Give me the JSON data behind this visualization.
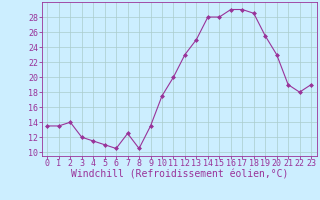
{
  "x": [
    0,
    1,
    2,
    3,
    4,
    5,
    6,
    7,
    8,
    9,
    10,
    11,
    12,
    13,
    14,
    15,
    16,
    17,
    18,
    19,
    20,
    21,
    22,
    23
  ],
  "y": [
    13.5,
    13.5,
    14.0,
    12.0,
    11.5,
    11.0,
    10.5,
    12.5,
    10.5,
    13.5,
    17.5,
    20.0,
    23.0,
    25.0,
    28.0,
    28.0,
    29.0,
    29.0,
    28.5,
    25.5,
    23.0,
    19.0,
    18.0,
    19.0
  ],
  "line_color": "#993399",
  "marker": "D",
  "marker_size": 2,
  "bg_color": "#cceeff",
  "grid_color": "#aacccc",
  "tick_color": "#993399",
  "label_color": "#993399",
  "xlabel": "Windchill (Refroidissement éolien,°C)",
  "ylim": [
    9.5,
    30
  ],
  "xlim": [
    -0.5,
    23.5
  ],
  "yticks": [
    10,
    12,
    14,
    16,
    18,
    20,
    22,
    24,
    26,
    28
  ],
  "xticks": [
    0,
    1,
    2,
    3,
    4,
    5,
    6,
    7,
    8,
    9,
    10,
    11,
    12,
    13,
    14,
    15,
    16,
    17,
    18,
    19,
    20,
    21,
    22,
    23
  ],
  "font_family": "monospace",
  "tick_fontsize": 6,
  "xlabel_fontsize": 7
}
